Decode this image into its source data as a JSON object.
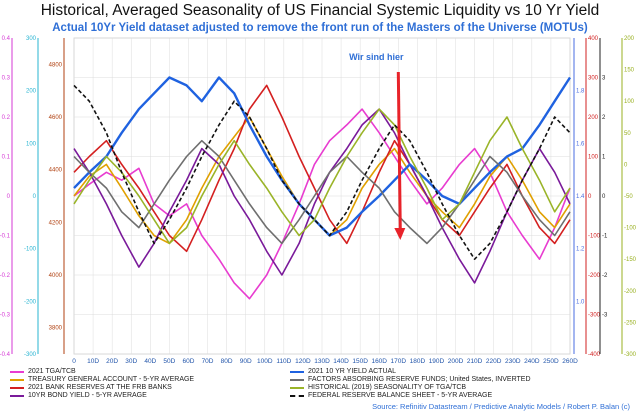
{
  "title": "Historical, Averaged Seasonality of US Financial Systemic Liquidity vs 10 Yr Yield",
  "subtitle": "Actual 10Yr Yield dataset adjusted to remove the front run of the Masters of the Universe (MOTUs)",
  "source": "Source: Refinitiv Datastream / Predictive Analytic Models / Robert P. Balan (c)",
  "chart_data": {
    "type": "line",
    "annotation": {
      "text": "Wir sind hier",
      "x_day": 170,
      "color": "#e8232a"
    },
    "x_ticks": [
      "0",
      "10D",
      "20D",
      "30D",
      "40D",
      "50D",
      "60D",
      "70D",
      "80D",
      "90D",
      "100D",
      "110D",
      "120D",
      "130D",
      "140D",
      "150D",
      "160D",
      "170D",
      "180D",
      "190D",
      "200D",
      "210D",
      "220D",
      "230D",
      "240D",
      "250D",
      "260D"
    ],
    "x_range": [
      0,
      260
    ],
    "axes": {
      "left": [
        {
          "id": "a1",
          "color": "#d63ad6",
          "min": -0.4,
          "max": 0.4,
          "ticks": [
            "0.4",
            "0.3",
            "0.2",
            "0.1",
            "0",
            "-0.1",
            "-0.2",
            "-0.3",
            "-0.4"
          ]
        },
        {
          "id": "a2",
          "color": "#28b4d2",
          "min": -300,
          "max": 300,
          "ticks": [
            "300",
            "200",
            "100",
            "0",
            "-100",
            "-200",
            "-300"
          ]
        },
        {
          "id": "a3",
          "color": "#b04010",
          "min": 3700,
          "max": 4900,
          "ticks": [
            "3800",
            "4000",
            "4200",
            "4400",
            "4600",
            "4800"
          ]
        }
      ],
      "right": [
        {
          "id": "b1",
          "color": "#4a6ee0",
          "min": 0.8,
          "max": 2.0,
          "ticks": [
            "1.8",
            "1.6",
            "1.4",
            "1.2",
            "1.0"
          ]
        },
        {
          "id": "b2",
          "color": "#d22020",
          "min": -400,
          "max": 400,
          "ticks": [
            "400",
            "300",
            "200",
            "100",
            "0",
            "-100",
            "-200",
            "-300",
            "-400"
          ]
        },
        {
          "id": "b3",
          "color": "#222222",
          "min": -4,
          "max": 4,
          "ticks": [
            "3",
            "2",
            "1",
            "0",
            "-1",
            "-2",
            "-3"
          ]
        },
        {
          "id": "b4",
          "color": "#98b020",
          "min": -300,
          "max": 200,
          "ticks": [
            "200",
            "150",
            "100",
            "50",
            "0",
            "-50",
            "-100",
            "-150",
            "-200",
            "-250",
            "-300"
          ]
        }
      ]
    },
    "series": [
      {
        "name": "2021 TGA/TCB",
        "color": "#e83cd0",
        "style": "solid",
        "values": [
          0,
          0.03,
          0.06,
          0.04,
          0.07,
          -0.02,
          -0.05,
          -0.02,
          -0.1,
          -0.16,
          -0.22,
          -0.26,
          -0.2,
          -0.12,
          -0.02,
          0.08,
          0.14,
          0.18,
          0.22,
          0.16,
          0.1,
          0.04,
          -0.02,
          0.02,
          0.08,
          0.12,
          0.06,
          -0.04,
          -0.1,
          -0.16,
          -0.08,
          0.02
        ]
      },
      {
        "name": "TREASURY GENERAL ACCOUNT - 5-YR AVERAGE",
        "color": "#e0a000",
        "style": "solid",
        "values": [
          0.0,
          0.05,
          0.08,
          0.02,
          -0.05,
          -0.1,
          -0.12,
          -0.06,
          0.02,
          0.1,
          0.15,
          0.2,
          0.12,
          0.05,
          -0.02,
          -0.06,
          -0.1,
          -0.06,
          0.02,
          0.08,
          0.12,
          0.06,
          0.0,
          -0.04,
          -0.08,
          -0.02,
          0.05,
          0.1,
          0.04,
          -0.04,
          -0.08,
          -0.02
        ]
      },
      {
        "name": "2021 BANK RESERVES AT THE FRB BANKS",
        "color": "#d42020",
        "style": "solid",
        "values": [
          0.06,
          0.1,
          0.14,
          0.08,
          0.02,
          -0.04,
          -0.1,
          -0.14,
          -0.06,
          0.04,
          0.12,
          0.22,
          0.28,
          0.2,
          0.1,
          0.02,
          -0.06,
          -0.12,
          -0.04,
          0.06,
          0.14,
          0.08,
          0.0,
          -0.06,
          -0.1,
          -0.04,
          0.02,
          0.08,
          0.0,
          -0.08,
          -0.12,
          -0.06
        ]
      },
      {
        "name": "10YR BOND YIELD - 5-YR AVERAGE",
        "color": "#7a1a9a",
        "style": "solid",
        "values": [
          0.12,
          0.06,
          -0.02,
          -0.1,
          -0.18,
          -0.12,
          -0.04,
          0.04,
          0.12,
          0.08,
          0.0,
          -0.06,
          -0.14,
          -0.2,
          -0.12,
          -0.02,
          0.06,
          0.12,
          0.18,
          0.22,
          0.16,
          0.08,
          0.0,
          -0.08,
          -0.16,
          -0.22,
          -0.14,
          -0.04,
          0.04,
          0.12,
          0.06,
          -0.02
        ]
      },
      {
        "name": "2021 10 YR YIELD ACTUAL",
        "color": "#1f62e0",
        "style": "solid",
        "values": [
          0.02,
          0.06,
          0.1,
          0.16,
          0.22,
          0.26,
          0.3,
          0.28,
          0.24,
          0.3,
          0.26,
          0.18,
          0.1,
          0.04,
          -0.02,
          -0.06,
          -0.1,
          -0.08,
          -0.04,
          0.0,
          0.04,
          0.08,
          0.04,
          0.0,
          -0.02,
          0.02,
          0.06,
          0.1,
          0.12,
          0.18,
          0.24,
          0.3
        ]
      },
      {
        "name": "FACTORS ABSORBING RESERVE FUNDS; United States, INVERTED",
        "color": "#6f6f6f",
        "style": "solid",
        "values": [
          0.1,
          0.06,
          0.02,
          -0.04,
          -0.08,
          -0.02,
          0.04,
          0.1,
          0.14,
          0.1,
          0.04,
          -0.02,
          -0.08,
          -0.12,
          -0.06,
          0.0,
          0.06,
          0.1,
          0.06,
          0.02,
          -0.04,
          -0.08,
          -0.12,
          -0.08,
          -0.02,
          0.04,
          0.1,
          0.06,
          0.0,
          -0.06,
          -0.1,
          -0.04
        ]
      },
      {
        "name": "HISTORICAL (2019) SEASONALITY OF TGA/TCB",
        "color": "#9ab428",
        "style": "solid",
        "values": [
          -0.02,
          0.04,
          0.1,
          0.06,
          0.0,
          -0.06,
          -0.12,
          -0.08,
          0.0,
          0.08,
          0.14,
          0.08,
          0.02,
          -0.04,
          -0.1,
          -0.06,
          0.02,
          0.1,
          0.16,
          0.22,
          0.18,
          0.1,
          0.02,
          -0.06,
          -0.02,
          0.06,
          0.14,
          0.2,
          0.12,
          0.04,
          -0.04,
          0.02
        ]
      },
      {
        "name": "FEDERAL RESERVE BALANCE SHEET - 5-YR AVERAGE",
        "color": "#111111",
        "style": "dashed",
        "values": [
          0.28,
          0.24,
          0.16,
          0.06,
          -0.04,
          -0.12,
          -0.06,
          0.02,
          0.1,
          0.18,
          0.24,
          0.2,
          0.12,
          0.04,
          -0.02,
          -0.06,
          -0.1,
          -0.04,
          0.04,
          0.12,
          0.18,
          0.14,
          0.06,
          -0.02,
          -0.1,
          -0.16,
          -0.12,
          -0.04,
          0.04,
          0.12,
          0.2,
          0.16
        ]
      }
    ],
    "x_values": [
      0,
      8,
      17,
      25,
      34,
      42,
      50,
      59,
      67,
      76,
      84,
      92,
      101,
      109,
      118,
      126,
      134,
      143,
      151,
      160,
      168,
      176,
      185,
      193,
      202,
      210,
      218,
      227,
      235,
      244,
      252,
      260
    ]
  }
}
